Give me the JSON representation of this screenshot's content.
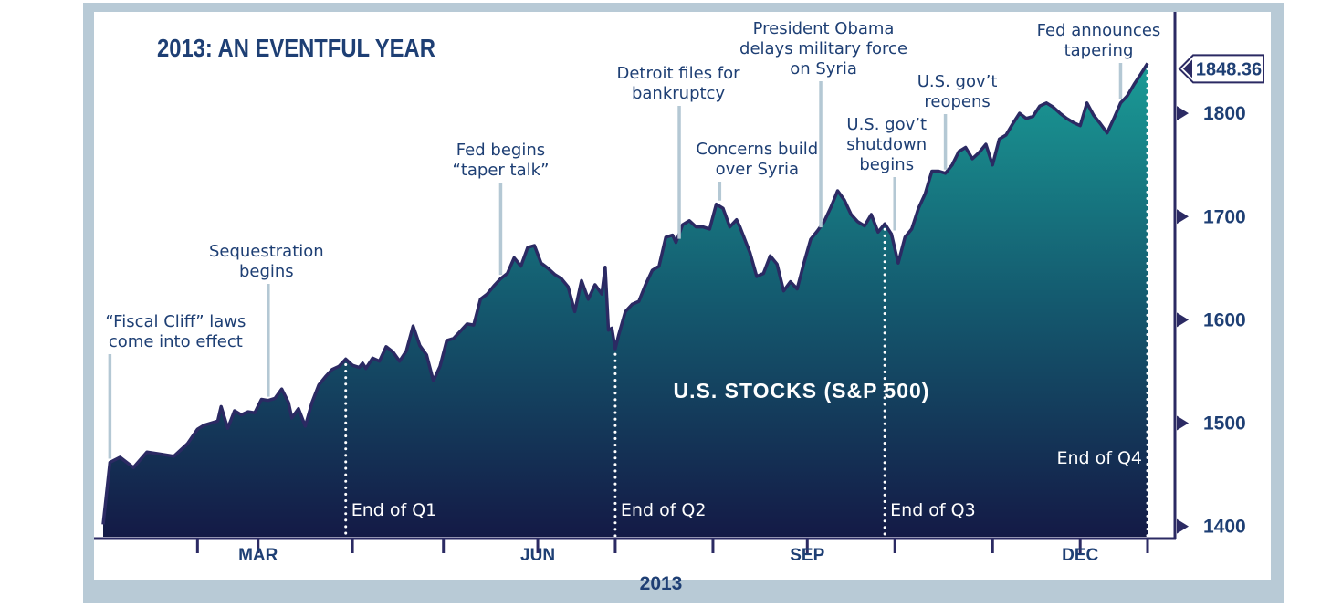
{
  "chart_data": {
    "type": "area",
    "title": "2013: AN EVENTFUL YEAR",
    "series_label": "U.S. STOCKS (S&P 500)",
    "xlabel": "2013",
    "x_tick_labels": [
      "MAR",
      "JUN",
      "SEP",
      "DEC"
    ],
    "y_ticks": [
      1400,
      1500,
      1600,
      1700,
      1800
    ],
    "ylim": [
      1390,
      1862
    ],
    "last_value_label": "1848.36",
    "grid": false,
    "colors": {
      "frame": "#b8cad6",
      "title": "#1e3f74",
      "text": "#1e3f74",
      "line": "#2b2a63",
      "fill_top": "#1a9b96",
      "fill_mid": "#145a6f",
      "fill_bottom": "#141a46",
      "annotation_line": "#b4c8d4",
      "quarter_divider": "#ffffff",
      "quarter_label": "#ffffff"
    },
    "points": [
      [
        0,
        1402
      ],
      [
        2,
        1462
      ],
      [
        5,
        1467
      ],
      [
        9,
        1457
      ],
      [
        13,
        1472
      ],
      [
        17,
        1470
      ],
      [
        21,
        1468
      ],
      [
        25,
        1480
      ],
      [
        28,
        1494
      ],
      [
        30,
        1498
      ],
      [
        32,
        1500
      ],
      [
        34,
        1502
      ],
      [
        35,
        1516
      ],
      [
        37,
        1495
      ],
      [
        39,
        1512
      ],
      [
        41,
        1508
      ],
      [
        43,
        1511
      ],
      [
        45,
        1510
      ],
      [
        47,
        1523
      ],
      [
        49,
        1522
      ],
      [
        51,
        1524
      ],
      [
        53,
        1533
      ],
      [
        55,
        1520
      ],
      [
        56,
        1505
      ],
      [
        58,
        1514
      ],
      [
        60,
        1497
      ],
      [
        62,
        1520
      ],
      [
        64,
        1537
      ],
      [
        66,
        1545
      ],
      [
        68,
        1552
      ],
      [
        70,
        1555
      ],
      [
        72,
        1562
      ],
      [
        74,
        1556
      ],
      [
        76,
        1554
      ],
      [
        77,
        1558
      ],
      [
        78,
        1553
      ],
      [
        80,
        1563
      ],
      [
        82,
        1560
      ],
      [
        84,
        1574
      ],
      [
        86,
        1569
      ],
      [
        88,
        1560
      ],
      [
        90,
        1570
      ],
      [
        92,
        1594
      ],
      [
        94,
        1575
      ],
      [
        96,
        1566
      ],
      [
        98,
        1541
      ],
      [
        100,
        1555
      ],
      [
        102,
        1580
      ],
      [
        104,
        1582
      ],
      [
        106,
        1589
      ],
      [
        108,
        1596
      ],
      [
        110,
        1595
      ],
      [
        112,
        1620
      ],
      [
        114,
        1625
      ],
      [
        116,
        1633
      ],
      [
        118,
        1640
      ],
      [
        120,
        1645
      ],
      [
        122,
        1660
      ],
      [
        124,
        1652
      ],
      [
        126,
        1670
      ],
      [
        128,
        1672
      ],
      [
        130,
        1655
      ],
      [
        132,
        1650
      ],
      [
        134,
        1644
      ],
      [
        136,
        1640
      ],
      [
        138,
        1632
      ],
      [
        140,
        1608
      ],
      [
        142,
        1638
      ],
      [
        144,
        1620
      ],
      [
        146,
        1634
      ],
      [
        148,
        1625
      ],
      [
        149,
        1651
      ],
      [
        150,
        1590
      ],
      [
        151,
        1592
      ],
      [
        152,
        1572
      ],
      [
        153,
        1585
      ],
      [
        155,
        1608
      ],
      [
        157,
        1615
      ],
      [
        159,
        1618
      ],
      [
        161,
        1634
      ],
      [
        163,
        1648
      ],
      [
        165,
        1652
      ],
      [
        167,
        1680
      ],
      [
        169,
        1682
      ],
      [
        170,
        1675
      ],
      [
        172,
        1692
      ],
      [
        174,
        1696
      ],
      [
        176,
        1690
      ],
      [
        178,
        1690
      ],
      [
        180,
        1688
      ],
      [
        182,
        1712
      ],
      [
        184,
        1708
      ],
      [
        186,
        1690
      ],
      [
        188,
        1697
      ],
      [
        189,
        1690
      ],
      [
        192,
        1665
      ],
      [
        194,
        1642
      ],
      [
        196,
        1645
      ],
      [
        198,
        1662
      ],
      [
        200,
        1654
      ],
      [
        202,
        1628
      ],
      [
        204,
        1637
      ],
      [
        206,
        1630
      ],
      [
        208,
        1655
      ],
      [
        210,
        1678
      ],
      [
        212,
        1686
      ],
      [
        214,
        1695
      ],
      [
        216,
        1709
      ],
      [
        218,
        1725
      ],
      [
        220,
        1716
      ],
      [
        222,
        1702
      ],
      [
        224,
        1695
      ],
      [
        226,
        1691
      ],
      [
        228,
        1702
      ],
      [
        230,
        1685
      ],
      [
        232,
        1693
      ],
      [
        234,
        1683
      ],
      [
        236,
        1655
      ],
      [
        238,
        1680
      ],
      [
        240,
        1688
      ],
      [
        242,
        1708
      ],
      [
        244,
        1722
      ],
      [
        246,
        1744
      ],
      [
        248,
        1744
      ],
      [
        250,
        1742
      ],
      [
        252,
        1750
      ],
      [
        254,
        1763
      ],
      [
        256,
        1767
      ],
      [
        258,
        1756
      ],
      [
        260,
        1762
      ],
      [
        262,
        1770
      ],
      [
        264,
        1750
      ],
      [
        266,
        1775
      ],
      [
        268,
        1779
      ],
      [
        270,
        1790
      ],
      [
        272,
        1800
      ],
      [
        274,
        1795
      ],
      [
        276,
        1797
      ],
      [
        278,
        1807
      ],
      [
        280,
        1810
      ],
      [
        282,
        1806
      ],
      [
        284,
        1800
      ],
      [
        286,
        1795
      ],
      [
        288,
        1791
      ],
      [
        290,
        1788
      ],
      [
        292,
        1810
      ],
      [
        294,
        1798
      ],
      [
        296,
        1790
      ],
      [
        298,
        1781
      ],
      [
        300,
        1795
      ],
      [
        302,
        1810
      ],
      [
        304,
        1817
      ],
      [
        306,
        1828
      ],
      [
        308,
        1838
      ],
      [
        310,
        1848.36
      ]
    ],
    "quarter_dividers": [
      {
        "day": 72,
        "label": "End of Q1"
      },
      {
        "day": 152,
        "label": "End of Q2"
      },
      {
        "day": 232,
        "label": "End of Q3"
      },
      {
        "day": 310,
        "label": "End of Q4"
      }
    ],
    "month_ticks": [
      28,
      46,
      74,
      101,
      129,
      152,
      181,
      209,
      235,
      264,
      290,
      310
    ],
    "month_label_positions": [
      46,
      129,
      209,
      290
    ],
    "annotations": [
      {
        "day": 2,
        "lines": [
          "“Fiscal Cliff” laws",
          "come into effect"
        ]
      },
      {
        "day": 49,
        "lines": [
          "Sequestration",
          "begins"
        ]
      },
      {
        "day": 118,
        "lines": [
          "Fed begins",
          "“taper talk”"
        ]
      },
      {
        "day": 171,
        "lines": [
          "Detroit files for",
          "bankruptcy"
        ]
      },
      {
        "day": 183,
        "lines": [
          "Concerns build",
          "over Syria"
        ]
      },
      {
        "day": 213,
        "lines": [
          "President Obama",
          "delays military force",
          "on Syria"
        ]
      },
      {
        "day": 235,
        "lines": [
          "U.S. gov’t",
          "shutdown",
          "begins"
        ]
      },
      {
        "day": 250,
        "lines": [
          "U.S. gov’t",
          "reopens"
        ]
      },
      {
        "day": 302,
        "lines": [
          "Fed announces",
          "tapering"
        ]
      }
    ]
  }
}
